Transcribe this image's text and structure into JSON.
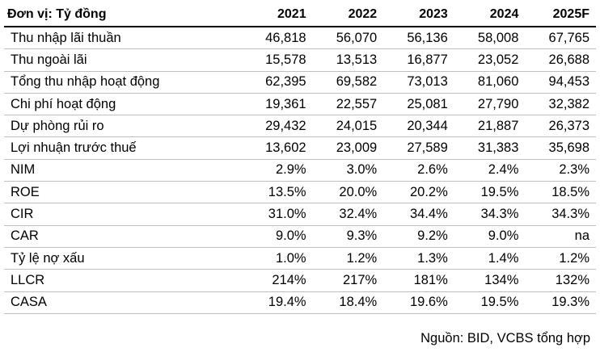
{
  "header": {
    "unit_label": "Đơn vị: Tỷ đồng",
    "years": [
      "2021",
      "2022",
      "2023",
      "2024",
      "2025F"
    ]
  },
  "rows": [
    {
      "label": "Thu nhập lãi thuần",
      "values": [
        "46,818",
        "56,070",
        "56,136",
        "58,008",
        "67,765"
      ]
    },
    {
      "label": "Thu ngoài lãi",
      "values": [
        "15,578",
        "13,513",
        "16,877",
        "23,052",
        "26,688"
      ]
    },
    {
      "label": "Tổng thu nhập hoạt động",
      "values": [
        "62,395",
        "69,582",
        "73,013",
        "81,060",
        "94,453"
      ]
    },
    {
      "label": "Chi phí hoạt động",
      "values": [
        "19,361",
        "22,557",
        "25,081",
        "27,790",
        "32,382"
      ]
    },
    {
      "label": "Dự phòng rủi ro",
      "values": [
        "29,432",
        "24,015",
        "20,344",
        "21,887",
        "26,373"
      ]
    },
    {
      "label": "Lợi nhuận trước thuế",
      "values": [
        "13,602",
        "23,009",
        "27,589",
        "31,383",
        "35,698"
      ]
    },
    {
      "label": "NIM",
      "values": [
        "2.9%",
        "3.0%",
        "2.6%",
        "2.4%",
        "2.3%"
      ]
    },
    {
      "label": "ROE",
      "values": [
        "13.5%",
        "20.0%",
        "20.2%",
        "19.5%",
        "18.5%"
      ]
    },
    {
      "label": "CIR",
      "values": [
        "31.0%",
        "32.4%",
        "34.4%",
        "34.3%",
        "34.3%"
      ]
    },
    {
      "label": "CAR",
      "values": [
        "9.0%",
        "9.3%",
        "9.2%",
        "9.0%",
        "na"
      ]
    },
    {
      "label": "Tỷ lệ nợ xấu",
      "values": [
        "1.0%",
        "1.2%",
        "1.3%",
        "1.4%",
        "1.2%"
      ]
    },
    {
      "label": "LLCR",
      "values": [
        "214%",
        "217%",
        "181%",
        "134%",
        "132%"
      ]
    },
    {
      "label": "CASA",
      "values": [
        "19.4%",
        "18.4%",
        "19.6%",
        "19.5%",
        "19.3%"
      ]
    }
  ],
  "source": "Nguồn: BID, VCBS tổng hợp"
}
